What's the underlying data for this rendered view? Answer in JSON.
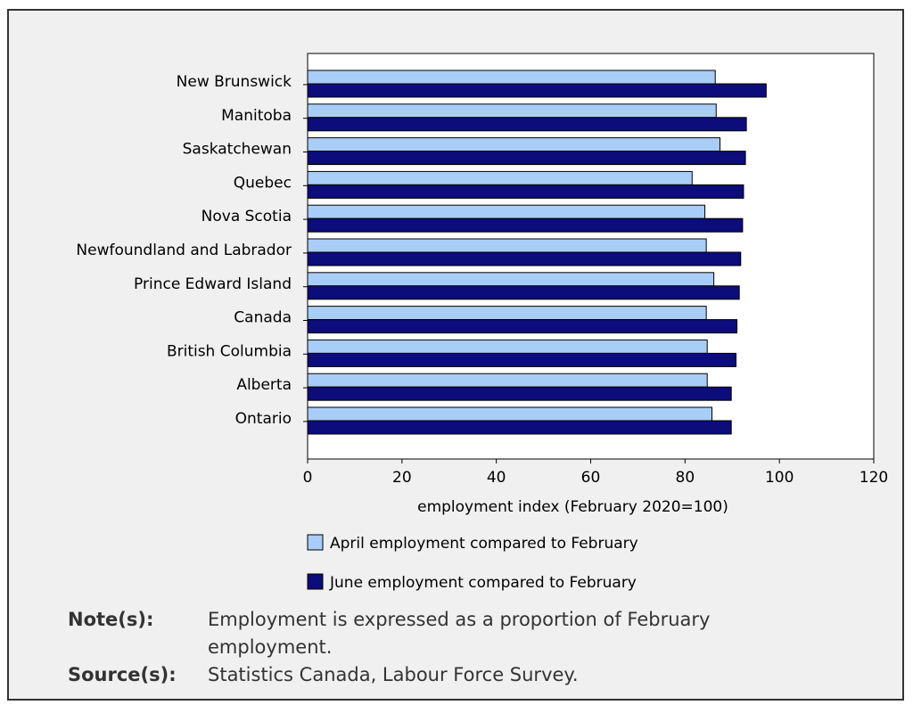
{
  "colors": {
    "series_april": "#a8cdf7",
    "series_june": "#0c0c7a",
    "plot_background": "#ffffff",
    "figure_background": "#f0f0f0"
  },
  "chart_data": {
    "type": "bar",
    "orientation": "horizontal",
    "categories": [
      "New Brunswick",
      "Manitoba",
      "Saskatchewan",
      "Quebec",
      "Nova Scotia",
      "Newfoundland and Labrador",
      "Prince Edward Island",
      "Canada",
      "British Columbia",
      "Alberta",
      "Ontario"
    ],
    "series": [
      {
        "name": "April employment compared to February",
        "color": "#a8cdf7",
        "values": [
          86.4,
          86.6,
          87.4,
          81.5,
          84.2,
          84.5,
          86.1,
          84.5,
          84.7,
          84.7,
          85.7
        ]
      },
      {
        "name": "June employment compared to February",
        "color": "#0c0c7a",
        "values": [
          97.2,
          93.0,
          92.8,
          92.4,
          92.2,
          91.8,
          91.5,
          91.0,
          90.8,
          89.8,
          89.8
        ]
      }
    ],
    "xlabel": "employment index (February 2020=100)",
    "ylabel": "",
    "xlim": [
      0,
      120
    ],
    "xticks": [
      "0",
      "20",
      "40",
      "60",
      "80",
      "100",
      "120"
    ],
    "grid": false,
    "legend_position": "bottom"
  },
  "notes": {
    "note_label": "Note(s):",
    "note_text": "Employment is expressed as a proportion of February employment.",
    "source_label": "Source(s):",
    "source_text": "Statistics Canada, Labour Force Survey."
  }
}
